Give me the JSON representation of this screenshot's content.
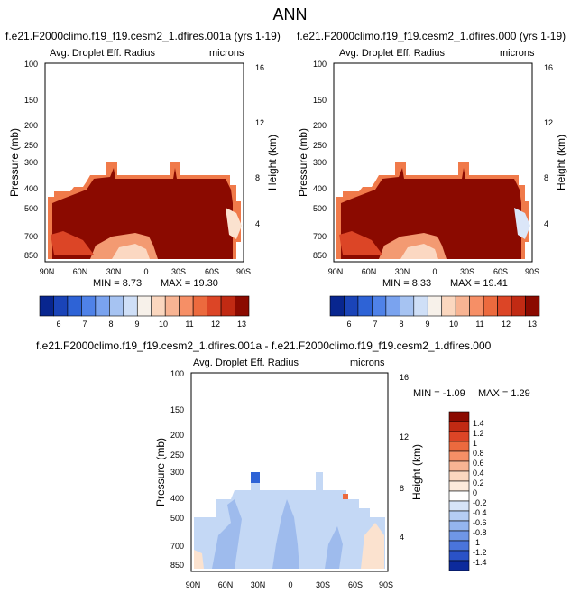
{
  "figure": {
    "title": "ANN",
    "diff_title": "f.e21.F2000climo.f19_f19.cesm2_1.dfires.001a - f.e21.F2000climo.f19_f19.cesm2_1.dfires.000"
  },
  "chart_data": [
    {
      "type": "heatmap",
      "title": "f.e21.F2000climo.f19_f19.cesm2_1.dfires.001a (yrs 1-19)",
      "variable": "Avg. Droplet Eff. Radius",
      "units": "microns",
      "xlabel": "",
      "ylabel": "Pressure (mb)",
      "y2label": "Height (km)",
      "x_ticks": [
        "90N",
        "60N",
        "30N",
        "0",
        "30S",
        "60S",
        "90S"
      ],
      "y_ticks": [
        "100",
        "150",
        "200",
        "250",
        "300",
        "400",
        "500",
        "700",
        "850"
      ],
      "y2_ticks": [
        "16",
        "12",
        "8",
        "4"
      ],
      "ylim": [
        1000,
        100
      ],
      "min": "8.73",
      "max": "19.30",
      "min_label": "MIN = 8.73",
      "max_label": "MAX = 19.30",
      "colorbar_labels": [
        "6",
        "7",
        "8",
        "9",
        "10",
        "11",
        "12",
        "13"
      ],
      "colorbar_colors": [
        "#08268f",
        "#1a44b8",
        "#2e63d6",
        "#4f82e8",
        "#7aa3ef",
        "#a6c3f2",
        "#cfdff7",
        "#f7f1ea",
        "#fbd7bf",
        "#f8b493",
        "#f68f66",
        "#ec6a3e",
        "#dc4526",
        "#c12a13",
        "#8b0a00"
      ]
    },
    {
      "type": "heatmap",
      "title": "f.e21.F2000climo.f19_f19.cesm2_1.dfires.000 (yrs 1-19)",
      "variable": "Avg. Droplet Eff. Radius",
      "units": "microns",
      "xlabel": "",
      "ylabel": "Pressure (mb)",
      "y2label": "Height (km)",
      "x_ticks": [
        "90N",
        "60N",
        "30N",
        "0",
        "30S",
        "60S",
        "90S"
      ],
      "y_ticks": [
        "100",
        "150",
        "200",
        "250",
        "300",
        "400",
        "500",
        "700",
        "850"
      ],
      "y2_ticks": [
        "16",
        "12",
        "8",
        "4"
      ],
      "ylim": [
        1000,
        100
      ],
      "min": "8.33",
      "max": "19.41",
      "min_label": "MIN = 8.33",
      "max_label": "MAX = 19.41",
      "colorbar_labels": [
        "6",
        "7",
        "8",
        "9",
        "10",
        "11",
        "12",
        "13"
      ],
      "colorbar_colors": [
        "#08268f",
        "#1a44b8",
        "#2e63d6",
        "#4f82e8",
        "#7aa3ef",
        "#a6c3f2",
        "#cfdff7",
        "#f7f1ea",
        "#fbd7bf",
        "#f8b493",
        "#f68f66",
        "#ec6a3e",
        "#dc4526",
        "#c12a13",
        "#8b0a00"
      ]
    },
    {
      "type": "heatmap",
      "title": "f.e21.F2000climo.f19_f19.cesm2_1.dfires.001a - f.e21.F2000climo.f19_f19.cesm2_1.dfires.000",
      "variable": "Avg. Droplet Eff. Radius",
      "units": "microns",
      "xlabel": "",
      "ylabel": "Pressure (mb)",
      "y2label": "Height (km)",
      "x_ticks": [
        "90N",
        "60N",
        "30N",
        "0",
        "30S",
        "60S",
        "90S"
      ],
      "y_ticks": [
        "100",
        "150",
        "200",
        "250",
        "300",
        "400",
        "500",
        "700",
        "850"
      ],
      "y2_ticks": [
        "16",
        "12",
        "8",
        "4"
      ],
      "ylim": [
        1000,
        100
      ],
      "min": "-1.09",
      "max": "1.29",
      "min_label": "MIN = -1.09",
      "max_label": "MAX = 1.29",
      "colorbar_labels": [
        "1.4",
        "1.2",
        "1",
        "0.8",
        "0.6",
        "0.4",
        "0.2",
        "0",
        "-0.2",
        "-0.4",
        "-0.6",
        "-0.8",
        "-1",
        "-1.2",
        "-1.4"
      ],
      "colorbar_colors": [
        "#8b0a00",
        "#c12a13",
        "#dc4526",
        "#ec6a3e",
        "#f68f66",
        "#f8b493",
        "#fbd7bf",
        "#fdebdc",
        "#ffffff",
        "#d6e4f8",
        "#b5cdf3",
        "#94b5ee",
        "#6f96e6",
        "#4a74db",
        "#2a52c7",
        "#0c2a9c"
      ]
    }
  ],
  "colors": {
    "field_dark": "#8b0a00",
    "field_mid": "#e04a1f",
    "diff_blue": "#c4d8f5",
    "diff_blue_dark": "#9ebbed",
    "diff_orange": "#fbe2cf"
  }
}
